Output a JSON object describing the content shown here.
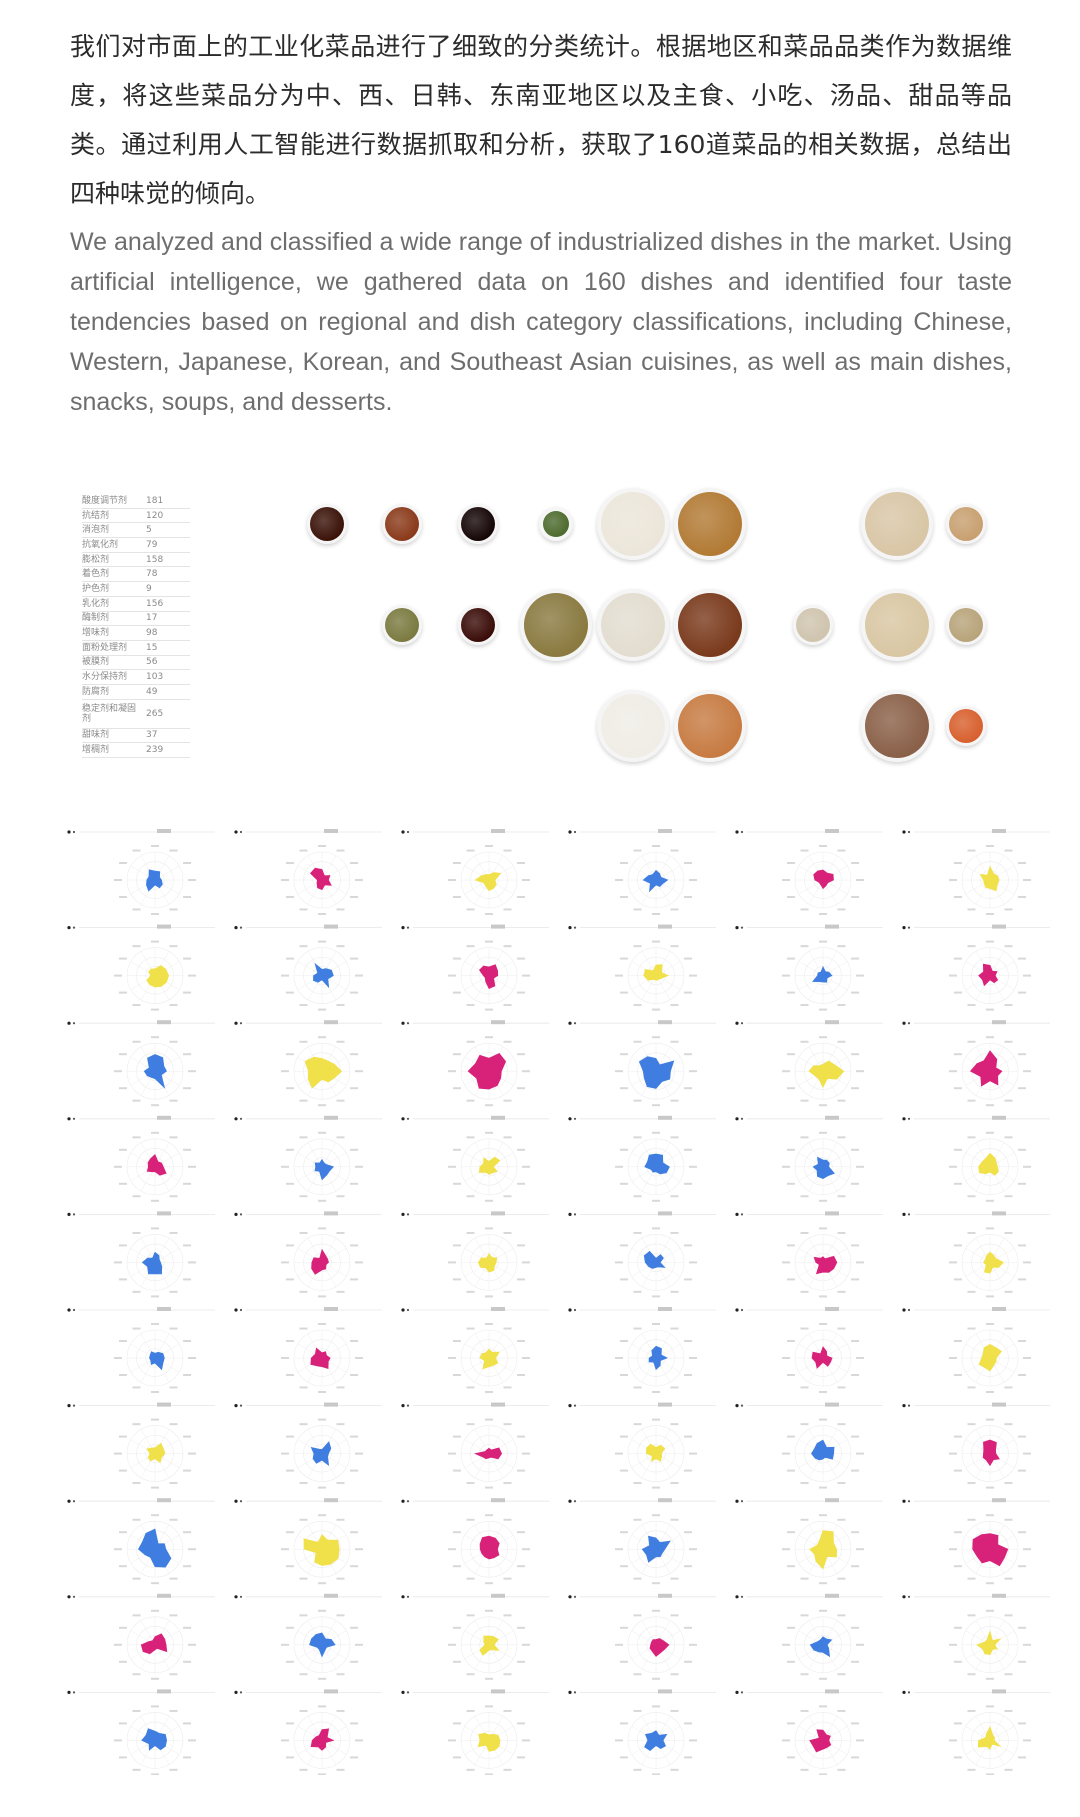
{
  "intro": {
    "zh": "我们对市面上的工业化菜品进行了细致的分类统计。根据地区和菜品品类作为数据维度，将这些菜品分为中、西、日韩、东南亚地区以及主食、小吃、汤品、甜品等品类。通过利用人工智能进行数据抓取和分析，获取了160道菜品的相关数据，总结出四种味觉的倾向。",
    "en": "We analyzed and classified a wide range of industrialized dishes in the market. Using artificial intelligence, we gathered data on 160 dishes and identified four taste tendencies based on regional and dish category classifications, including Chinese, Western, Japanese, Korean, and Southeast Asian cuisines, as well as main dishes, snacks, soups, and desserts."
  },
  "additives": [
    {
      "name": "酸度调节剂",
      "count": "181"
    },
    {
      "name": "抗结剂",
      "count": "120"
    },
    {
      "name": "消泡剂",
      "count": "5"
    },
    {
      "name": "抗氧化剂",
      "count": "79"
    },
    {
      "name": "膨松剂",
      "count": "158"
    },
    {
      "name": "着色剂",
      "count": "78"
    },
    {
      "name": "护色剂",
      "count": "9"
    },
    {
      "name": "乳化剂",
      "count": "156"
    },
    {
      "name": "酶制剂",
      "count": "17"
    },
    {
      "name": "增味剂",
      "count": "98"
    },
    {
      "name": "面粉处理剂",
      "count": "15"
    },
    {
      "name": "被膜剂",
      "count": "56"
    },
    {
      "name": "水分保持剂",
      "count": "103"
    },
    {
      "name": "防腐剂",
      "count": "49"
    },
    {
      "name": "稳定剂和凝固剂",
      "count": "265"
    },
    {
      "name": "甜味剂",
      "count": "37"
    },
    {
      "name": "增稠剂",
      "count": "239"
    }
  ],
  "food_plates": [
    {
      "color": "#3a1208"
    },
    {
      "color": "#8a3a1a"
    },
    {
      "color": "#150606"
    },
    {
      "color": "#4d6b2e"
    },
    {
      "color": "#ece6da"
    },
    {
      "color": "#b27a34"
    },
    {
      "color": "#d9c6a6"
    },
    {
      "color": "#c8a070"
    },
    {
      "color": "#7a7a40"
    },
    {
      "color": "#3a0c08"
    },
    {
      "color": "#8a7a40"
    },
    {
      "color": "#e3ddd0"
    },
    {
      "color": "#7a3a1c"
    },
    {
      "color": "#cfc4ae"
    },
    {
      "color": "#d9c7a3"
    },
    {
      "color": "#b8a47a"
    },
    {
      "color": "#f0ede6"
    },
    {
      "color": "#c77b42"
    },
    {
      "color": "#8a6048"
    },
    {
      "color": "#d8602e"
    }
  ],
  "radar_colors": {
    "blue": "#3f7ee0",
    "magenta": "#d8227a",
    "yellow": "#f0e04a"
  },
  "radar_rows": [
    [
      "blue",
      "magenta",
      "yellow",
      "blue",
      "magenta",
      "yellow"
    ],
    [
      "yellow",
      "blue",
      "magenta",
      "yellow",
      "blue",
      "magenta"
    ],
    [
      "blue",
      "yellow",
      "magenta",
      "blue",
      "yellow",
      "magenta"
    ],
    [
      "magenta",
      "blue",
      "yellow",
      "blue",
      "blue",
      "yellow"
    ],
    [
      "blue",
      "magenta",
      "yellow",
      "blue",
      "magenta",
      "yellow"
    ],
    [
      "blue",
      "magenta",
      "yellow",
      "blue",
      "magenta",
      "yellow"
    ],
    [
      "yellow",
      "blue",
      "magenta",
      "yellow",
      "blue",
      "magenta"
    ],
    [
      "blue",
      "yellow",
      "magenta",
      "blue",
      "yellow",
      "magenta"
    ],
    [
      "magenta",
      "blue",
      "yellow",
      "magenta",
      "blue",
      "yellow"
    ],
    [
      "blue",
      "magenta",
      "yellow",
      "blue",
      "magenta",
      "yellow"
    ]
  ]
}
